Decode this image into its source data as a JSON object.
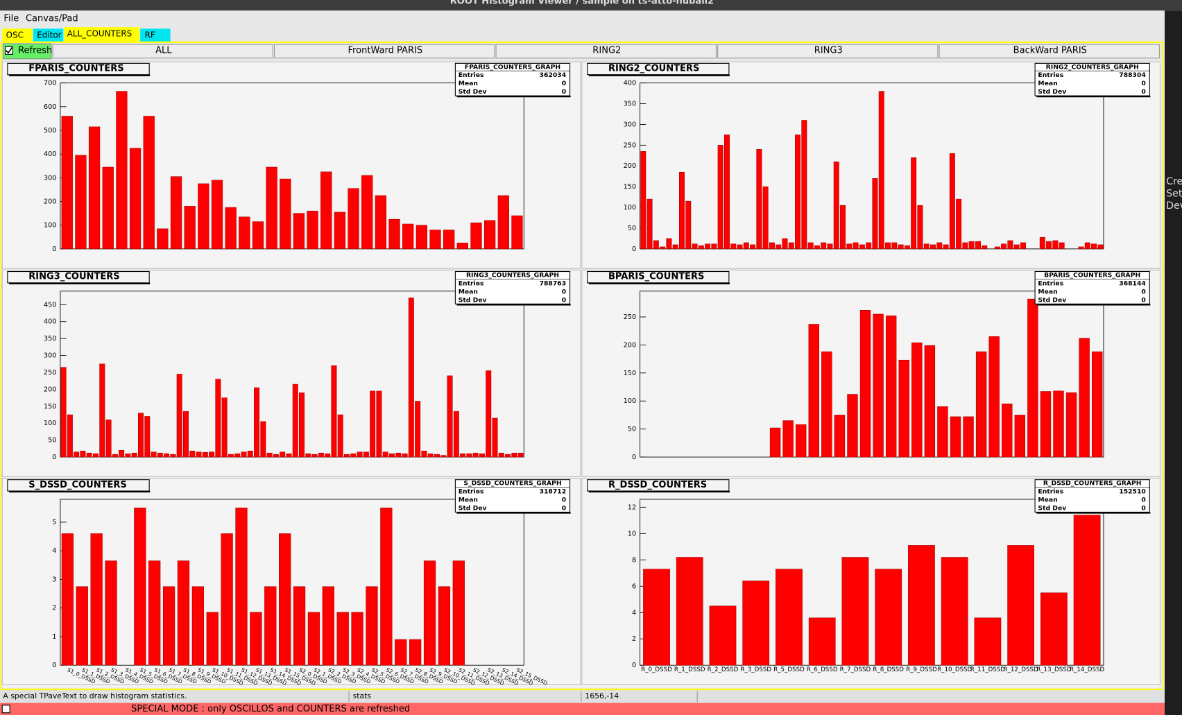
{
  "window_title": "ROOT Histogram Viewer / sample on ts-atto-nuball2",
  "menu": [
    "File",
    "Canvas/Pad"
  ],
  "tabs": [
    "OSC",
    "Editor",
    "ALL_COUNTERS",
    "RF"
  ],
  "refresh": "Refresh",
  "buttons": [
    "ALL",
    "FrontWard PARIS",
    "RING2",
    "RING3",
    "BackWard PARIS"
  ],
  "status": [
    "A special TPaveText to draw histogram statistics.",
    "stats",
    "1656,-14"
  ],
  "mode_banner": "SPECIAL MODE : only OSCILLOS and COUNTERS are refreshed",
  "terminal": [
    "Cre",
    "Set",
    "Dev"
  ],
  "chart_data": [
    {
      "type": "bar",
      "title": "FPARIS_COUNTERS",
      "color": "#ff0000",
      "ylim": [
        0,
        700
      ],
      "yticks": [
        0,
        100,
        200,
        300,
        400,
        500,
        600,
        700
      ],
      "stats": {
        "name": "FPARIS_COUNTERS_GRAPH",
        "rows": [
          [
            "Entries",
            "362034"
          ],
          [
            "Mean",
            "0"
          ],
          [
            "Std Dev",
            "0"
          ]
        ]
      },
      "values": [
        560,
        395,
        515,
        345,
        665,
        425,
        560,
        85,
        305,
        180,
        275,
        290,
        175,
        135,
        115,
        345,
        295,
        150,
        160,
        325,
        155,
        255,
        310,
        225,
        125,
        105,
        100,
        80,
        80,
        25,
        110,
        120,
        225,
        140
      ]
    },
    {
      "type": "bar",
      "title": "RING2_COUNTERS",
      "color": "#ff0000",
      "ylim": [
        0,
        400
      ],
      "yticks": [
        0,
        50,
        100,
        150,
        200,
        250,
        300,
        350,
        400
      ],
      "stats": {
        "name": "RING2_COUNTERS_GRAPH",
        "rows": [
          [
            "Entries",
            "788304"
          ],
          [
            "Mean",
            "0"
          ],
          [
            "Std Dev",
            "0"
          ]
        ]
      },
      "values": [
        235,
        120,
        20,
        5,
        25,
        10,
        185,
        115,
        12,
        8,
        12,
        12,
        250,
        275,
        12,
        10,
        15,
        10,
        240,
        150,
        15,
        10,
        25,
        15,
        275,
        310,
        15,
        8,
        15,
        12,
        210,
        105,
        12,
        15,
        10,
        15,
        170,
        380,
        15,
        15,
        10,
        8,
        220,
        105,
        12,
        10,
        15,
        10,
        230,
        120,
        15,
        18,
        18,
        8,
        0,
        5,
        12,
        20,
        10,
        15,
        0,
        0,
        28,
        18,
        20,
        15,
        0,
        0,
        5,
        15,
        12,
        10
      ]
    },
    {
      "type": "bar",
      "title": "RING3_COUNTERS",
      "color": "#ff0000",
      "ylim": [
        0,
        490
      ],
      "yticks": [
        0,
        50,
        100,
        150,
        200,
        250,
        300,
        350,
        400,
        450
      ],
      "stats": {
        "name": "RING3_COUNTERS_GRAPH",
        "rows": [
          [
            "Entries",
            "788763"
          ],
          [
            "Mean",
            "0"
          ],
          [
            "Std Dev",
            "0"
          ]
        ]
      },
      "values": [
        265,
        125,
        15,
        18,
        12,
        10,
        275,
        110,
        8,
        20,
        10,
        12,
        130,
        120,
        15,
        12,
        10,
        8,
        245,
        135,
        18,
        15,
        14,
        15,
        230,
        175,
        8,
        10,
        15,
        18,
        205,
        105,
        12,
        8,
        15,
        10,
        215,
        190,
        10,
        8,
        12,
        10,
        270,
        125,
        8,
        10,
        15,
        15,
        195,
        195,
        15,
        10,
        12,
        10,
        470,
        165,
        18,
        10,
        8,
        5,
        240,
        135,
        10,
        10,
        12,
        10,
        255,
        115,
        12,
        8,
        12,
        12
      ]
    },
    {
      "type": "bar",
      "title": "BPARIS_COUNTERS",
      "color": "#ff0000",
      "ylim": [
        0,
        296
      ],
      "yticks": [
        0,
        50,
        100,
        150,
        200,
        250
      ],
      "stats": {
        "name": "BPARIS_COUNTERS_GRAPH",
        "rows": [
          [
            "Entries",
            "368144"
          ],
          [
            "Mean",
            "0"
          ],
          [
            "Std Dev",
            "0"
          ]
        ]
      },
      "values": [
        0,
        0,
        0,
        0,
        0,
        0,
        0,
        0,
        0,
        0,
        52,
        65,
        58,
        237,
        188,
        75,
        112,
        262,
        255,
        252,
        173,
        204,
        199,
        90,
        72,
        72,
        188,
        215,
        95,
        75,
        282,
        117,
        118,
        115,
        212,
        188
      ]
    },
    {
      "type": "bar",
      "title": "S_DSSD_COUNTERS",
      "color": "#ff0000",
      "ylim": [
        0,
        5.8
      ],
      "yticks": [
        0,
        1,
        2,
        3,
        4,
        5
      ],
      "stats": {
        "name": "S_DSSD_COUNTERS_GRAPH",
        "rows": [
          [
            "Entries",
            "318712"
          ],
          [
            "Mean",
            "0"
          ],
          [
            "Std Dev",
            "0"
          ]
        ]
      },
      "categories": [
        "S1_0_DSSD",
        "S1_1_DSSD",
        "S1_2_DSSD",
        "S1_3_DSSD",
        "S1_4_DSSD",
        "S1_5_DSSD",
        "S1_6_DSSD",
        "S1_7_DSSD",
        "S1_8_DSSD",
        "S1_9_DSSD",
        "S1_10_DSSD",
        "S1_11_DSSD",
        "S1_12_DSSD",
        "S1_13_DSSD",
        "S1_14_DSSD",
        "S1_15_DSSD",
        "S2_0_DSSD",
        "S2_1_DSSD",
        "S2_2_DSSD",
        "S2_3_DSSD",
        "S2_4_DSSD",
        "S2_5_DSSD",
        "S2_6_DSSD",
        "S2_7_DSSD",
        "S2_8_DSSD",
        "S2_9_DSSD",
        "S2_10_DSSD",
        "S2_11_DSSD",
        "S2_12_DSSD",
        "S2_13_DSSD",
        "S2_14_DSSD",
        "S2_15_DSSD"
      ],
      "values": [
        4.6,
        2.75,
        4.6,
        3.65,
        0,
        5.5,
        3.65,
        2.75,
        3.65,
        2.75,
        1.85,
        4.6,
        5.5,
        1.85,
        2.75,
        4.6,
        2.75,
        1.85,
        2.75,
        1.85,
        1.85,
        2.75,
        5.5,
        0.9,
        0.9,
        3.65,
        2.75,
        3.65,
        0,
        0,
        0,
        0
      ]
    },
    {
      "type": "bar",
      "title": "R_DSSD_COUNTERS",
      "color": "#ff0000",
      "ylim": [
        0,
        12.6
      ],
      "yticks": [
        0,
        2,
        4,
        6,
        8,
        10,
        12
      ],
      "stats": {
        "name": "R_DSSD_COUNTERS_GRAPH",
        "rows": [
          [
            "Entries",
            "152510"
          ],
          [
            "Mean",
            "0"
          ],
          [
            "Std Dev",
            "0"
          ]
        ]
      },
      "categories": [
        "R_0_DSSD",
        "R_1_DSSD",
        "R_2_DSSD",
        "R_3_DSSD",
        "R_5_DSSD",
        "R_6_DSSD",
        "R_7_DSSD",
        "R_8_DSSD",
        "R_9_DSSD",
        "R_10_DSSD",
        "R_11_DSSD",
        "R_12_DSSD",
        "R_13_DSSD",
        "R_14_DSSD"
      ],
      "values": [
        7.3,
        8.2,
        4.5,
        6.4,
        7.3,
        3.6,
        8.2,
        7.3,
        9.1,
        8.2,
        3.6,
        9.1,
        5.5,
        11.4
      ]
    }
  ]
}
